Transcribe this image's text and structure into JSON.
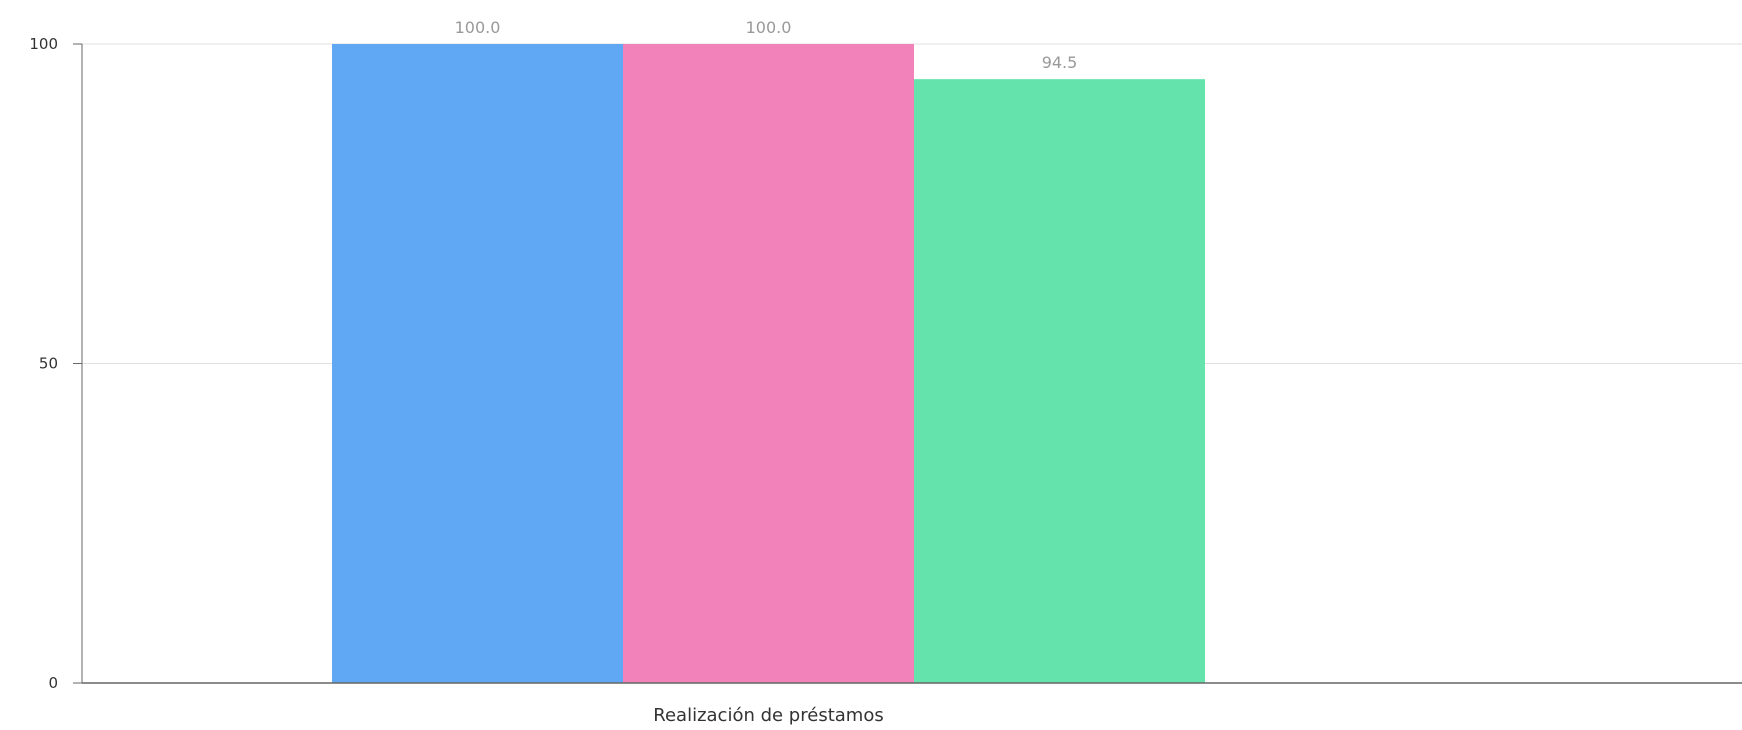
{
  "chart_data": {
    "type": "bar",
    "categories": [
      "Realización de préstamos"
    ],
    "series": [
      {
        "values": [
          100.0
        ],
        "color": "#60a8f4"
      },
      {
        "values": [
          100.0
        ],
        "color": "#f283ba"
      },
      {
        "values": [
          94.5
        ],
        "color": "#64e3ac"
      }
    ],
    "data_labels": [
      "100.0",
      "100.0",
      "94.5"
    ],
    "ylim": [
      0,
      100
    ],
    "yticks": [
      0,
      50,
      100
    ],
    "ytick_labels": [
      "0",
      "50",
      "100"
    ],
    "grid": true,
    "title": "",
    "xlabel": "",
    "ylabel": ""
  }
}
